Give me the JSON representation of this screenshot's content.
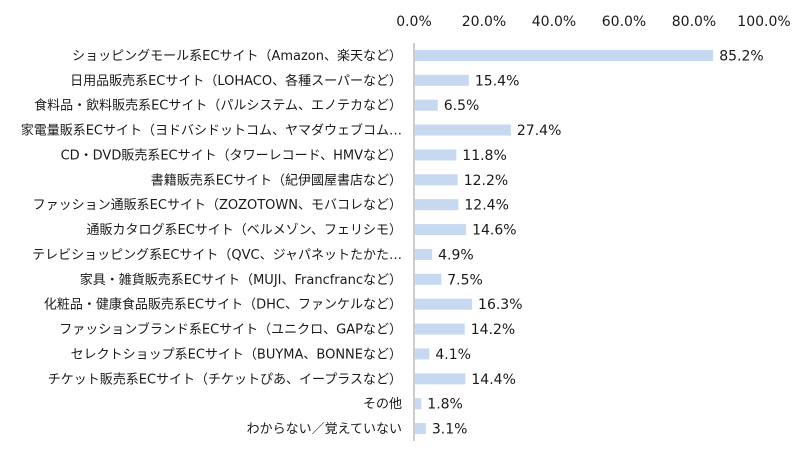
{
  "chart_data": {
    "type": "bar",
    "orientation": "horizontal",
    "title": "",
    "xlabel": "",
    "ylabel": "",
    "xlim": [
      0,
      100
    ],
    "ticks": [
      "0.0%",
      "20.0%",
      "40.0%",
      "60.0%",
      "80.0%",
      "100.0%"
    ],
    "tick_values": [
      0,
      20,
      40,
      60,
      80,
      100
    ],
    "grid": false,
    "bar_color": "#c6d9f1",
    "categories": [
      "ショッピングモール系ECサイト（Amazon、楽天など）",
      "日用品販売系ECサイト（LOHACO、各種スーパーなど）",
      "食料品・飲料販売系ECサイト（パルシステム、エノテカなど）",
      "家電量販系ECサイト（ヨドバシドットコム、ヤマダウェブコム…",
      "CD・DVD販売系ECサイト（タワーレコード、HMVなど）",
      "書籍販売系ECサイト（紀伊國屋書店など）",
      "ファッション通販系ECサイト（ZOZOTOWN、モバコレなど）",
      "通販カタログ系ECサイト（ベルメゾン、フェリシモ）",
      "テレビショッピング系ECサイト（QVC、ジャパネットたかた…",
      "家具・雑貨販売系ECサイト（MUJI、Francfrancなど）",
      "化粧品・健康食品販売系ECサイト（DHC、ファンケルなど）",
      "ファッションブランド系ECサイト（ユニクロ、GAPなど）",
      "セレクトショップ系ECサイト（BUYMA、BONNEなど）",
      "チケット販売系ECサイト（チケットぴあ、イープラスなど）",
      "その他",
      "わからない／覚えていない"
    ],
    "values": [
      85.2,
      15.4,
      6.5,
      27.4,
      11.8,
      12.2,
      12.4,
      14.6,
      4.9,
      7.5,
      16.3,
      14.2,
      4.1,
      14.4,
      1.8,
      3.1
    ],
    "data_labels": [
      "85.2%",
      "15.4%",
      "6.5%",
      "27.4%",
      "11.8%",
      "12.2%",
      "12.4%",
      "14.6%",
      "4.9%",
      "7.5%",
      "16.3%",
      "14.2%",
      "4.1%",
      "14.4%",
      "1.8%",
      "3.1%"
    ]
  }
}
